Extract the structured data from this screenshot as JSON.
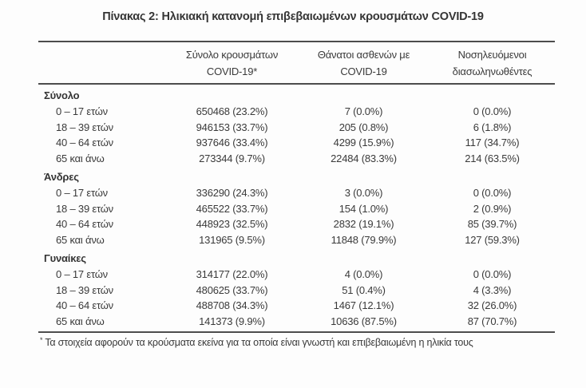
{
  "title": "Πίνακας 2: Ηλικιακή κατανομή επιβεβαιωμένων κρουσμάτων COVID-19",
  "table": {
    "columns": [
      {
        "line1": "Σύνολο κρουσμάτων",
        "line2": "COVID-19*"
      },
      {
        "line1": "Θάνατοι ασθενών με",
        "line2": "COVID-19"
      },
      {
        "line1": "Νοσηλευόμενοι",
        "line2": "διασωληνωθέντες"
      }
    ],
    "sections": [
      {
        "label": "Σύνολο",
        "rows": [
          {
            "age": "0 – 17 ετών",
            "cases": "650468 (23.2%)",
            "deaths": "7 (0.0%)",
            "intubated": "0 (0.0%)"
          },
          {
            "age": "18 – 39 ετών",
            "cases": "946153 (33.7%)",
            "deaths": "205 (0.8%)",
            "intubated": "6 (1.8%)"
          },
          {
            "age": "40 – 64 ετών",
            "cases": "937646 (33.4%)",
            "deaths": "4299 (15.9%)",
            "intubated": "117 (34.7%)"
          },
          {
            "age": "65 και άνω",
            "cases": "273344 (9.7%)",
            "deaths": "22484 (83.3%)",
            "intubated": "214 (63.5%)"
          }
        ]
      },
      {
        "label": "Άνδρες",
        "rows": [
          {
            "age": "0 – 17 ετών",
            "cases": "336290 (24.3%)",
            "deaths": "3 (0.0%)",
            "intubated": "0 (0.0%)"
          },
          {
            "age": "18 – 39 ετών",
            "cases": "465522 (33.7%)",
            "deaths": "154 (1.0%)",
            "intubated": "2 (0.9%)"
          },
          {
            "age": "40 – 64 ετών",
            "cases": "448923 (32.5%)",
            "deaths": "2832 (19.1%)",
            "intubated": "85 (39.7%)"
          },
          {
            "age": "65 και άνω",
            "cases": "131965 (9.5%)",
            "deaths": "11848 (79.9%)",
            "intubated": "127 (59.3%)"
          }
        ]
      },
      {
        "label": "Γυναίκες",
        "rows": [
          {
            "age": "0 – 17 ετών",
            "cases": "314177 (22.0%)",
            "deaths": "4 (0.0%)",
            "intubated": "0 (0.0%)"
          },
          {
            "age": "18 – 39 ετών",
            "cases": "480625 (33.7%)",
            "deaths": "51 (0.4%)",
            "intubated": "4 (3.3%)"
          },
          {
            "age": "40 – 64 ετών",
            "cases": "488708 (34.3%)",
            "deaths": "1467 (12.1%)",
            "intubated": "32 (26.0%)"
          },
          {
            "age": "65 και άνω",
            "cases": "141373 (9.9%)",
            "deaths": "10636 (87.5%)",
            "intubated": "87 (70.7%)"
          }
        ]
      }
    ]
  },
  "footnote": {
    "marker": "*",
    "text": "Τα στοιχεία αφορούν τα κρούσματα εκείνα για τα οποία είναι γνωστή και επιβεβαιωμένη η ηλικία τους"
  }
}
